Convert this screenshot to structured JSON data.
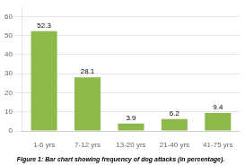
{
  "chart_data": {
    "type": "bar",
    "title": "Figure 1: Bar chart showing frequency of dog attacks (in percentage).",
    "categories": [
      "1-6 yrs",
      "7-12 yrs",
      "13-20 yrs",
      "21-40 yrs",
      "41-75 yrs"
    ],
    "values": [
      52.3,
      28.1,
      3.9,
      6.2,
      9.4
    ],
    "color": "#8db84a",
    "ylim": [
      0,
      65
    ],
    "yticks": [
      0,
      10,
      20,
      30,
      40,
      50,
      60
    ],
    "grid": true,
    "data_labels": true
  }
}
